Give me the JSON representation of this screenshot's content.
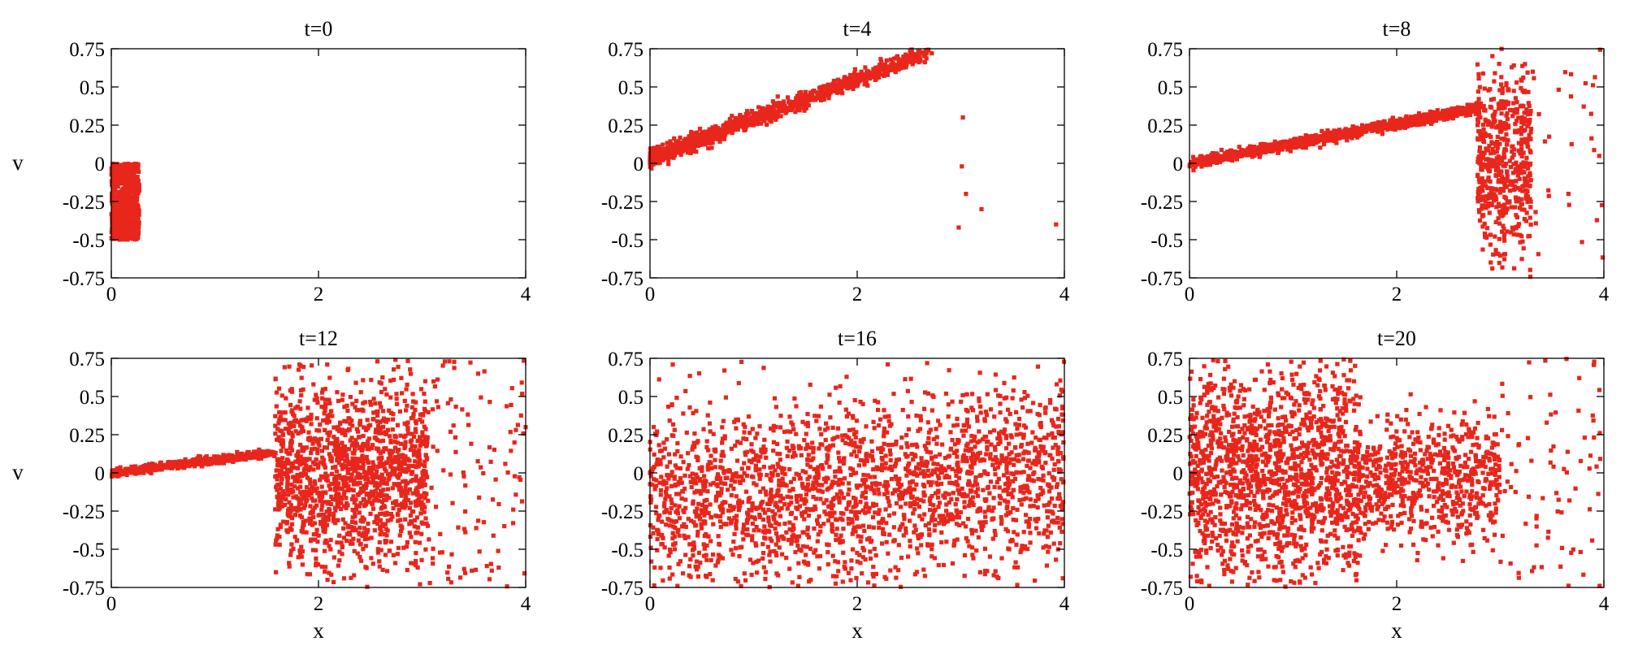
{
  "chart_data": {
    "type": "scatter",
    "marker_color": "#e8261c",
    "layout": "2 rows x 3 columns",
    "xlim": [
      0,
      4
    ],
    "ylim": [
      -0.75,
      0.75
    ],
    "x_ticks": [
      "0",
      "2",
      "4"
    ],
    "y_ticks": [
      "0.75",
      "0.5",
      "0.25",
      "0",
      "-0.25",
      "-0.5",
      "-0.75"
    ],
    "xlabel": "x",
    "ylabel": "v",
    "panels": [
      {
        "title": "t=0",
        "regions": [
          {
            "kind": "box",
            "x": [
              0.0,
              0.27
            ],
            "v": [
              -0.5,
              0.0
            ],
            "n": 700
          }
        ],
        "points": []
      },
      {
        "title": "t=4",
        "regions": [
          {
            "kind": "band",
            "x": [
              0.0,
              2.7
            ],
            "v_at_x0": 0.03,
            "slope": 0.26,
            "spread": 0.025,
            "n": 1300,
            "density": "decreasing"
          }
        ],
        "points": [
          [
            3.02,
            0.3
          ],
          [
            3.01,
            -0.02
          ],
          [
            3.05,
            -0.2
          ],
          [
            3.2,
            -0.3
          ],
          [
            2.98,
            -0.42
          ],
          [
            3.92,
            -0.4
          ],
          [
            2.72,
            0.72
          ]
        ]
      },
      {
        "title": "t=8",
        "regions": [
          {
            "kind": "band",
            "x": [
              0.0,
              2.8
            ],
            "v_at_x0": 0.0,
            "slope": 0.13,
            "spread": 0.018,
            "n": 1000,
            "density": "uniform"
          },
          {
            "kind": "cloud",
            "x": [
              2.78,
              3.3
            ],
            "v": [
              -0.75,
              0.75
            ],
            "n": 550,
            "distribution": "gaussian",
            "sigma": 0.32
          },
          {
            "kind": "cloud",
            "x": [
              3.3,
              4.0
            ],
            "v": [
              -0.75,
              0.75
            ],
            "n": 30,
            "distribution": "uniform"
          }
        ],
        "points": []
      },
      {
        "title": "t=12",
        "regions": [
          {
            "kind": "band",
            "x": [
              0.0,
              1.58
            ],
            "v_at_x0": 0.0,
            "slope": 0.085,
            "spread": 0.012,
            "n": 550,
            "density": "uniform"
          },
          {
            "kind": "cloud",
            "x": [
              1.58,
              3.05
            ],
            "v": [
              -0.75,
              0.75
            ],
            "n": 1400,
            "distribution": "gaussian",
            "sigma": 0.3
          },
          {
            "kind": "cloud",
            "x": [
              3.05,
              4.0
            ],
            "v": [
              -0.75,
              0.75
            ],
            "n": 110,
            "distribution": "uniform"
          }
        ],
        "points": []
      },
      {
        "title": "t=16",
        "regions": [
          {
            "kind": "cloud",
            "x": [
              0.0,
              4.0
            ],
            "v": [
              -0.75,
              0.75
            ],
            "v_center_at_x0": -0.22,
            "v_center_at_x4": 0.0,
            "n": 2100,
            "distribution": "gaussian",
            "sigma": 0.3
          }
        ],
        "points": [
          [
            0.0,
            0.0
          ],
          [
            0.01,
            -0.02
          ]
        ]
      },
      {
        "title": "t=20",
        "regions": [
          {
            "kind": "cloud",
            "x": [
              0.0,
              1.65
            ],
            "v": [
              -0.75,
              0.75
            ],
            "v_center": 0.0,
            "n": 1500,
            "distribution": "gaussian",
            "sigma": 0.36
          },
          {
            "kind": "cloud",
            "x": [
              1.65,
              3.0
            ],
            "v": [
              -0.75,
              0.75
            ],
            "v_center": -0.05,
            "n": 650,
            "distribution": "gaussian",
            "sigma": 0.2
          },
          {
            "kind": "cloud",
            "x": [
              3.0,
              4.0
            ],
            "v": [
              -0.75,
              0.75
            ],
            "n": 80,
            "distribution": "uniform"
          }
        ],
        "points": []
      }
    ]
  }
}
